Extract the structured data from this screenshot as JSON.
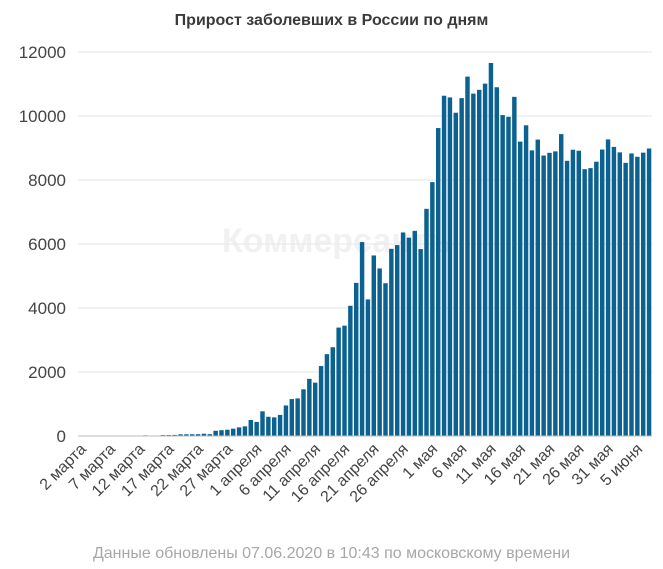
{
  "chart_data": {
    "type": "bar",
    "title": "Прирост заболевших в России по дням",
    "xlabel": "",
    "ylabel": "",
    "ylim": [
      0,
      12000
    ],
    "yticks": [
      0,
      2000,
      4000,
      6000,
      8000,
      10000,
      12000
    ],
    "grid": true,
    "color": "#0b6290",
    "dates": [
      "2 марта",
      "3 марта",
      "4 марта",
      "5 марта",
      "6 марта",
      "7 марта",
      "8 марта",
      "9 марта",
      "10 марта",
      "11 марта",
      "12 марта",
      "13 марта",
      "14 марта",
      "15 марта",
      "16 марта",
      "17 марта",
      "18 марта",
      "19 марта",
      "20 марта",
      "21 марта",
      "22 марта",
      "23 марта",
      "24 марта",
      "25 марта",
      "26 марта",
      "27 марта",
      "28 марта",
      "29 марта",
      "30 марта",
      "31 марта",
      "1 апреля",
      "2 апреля",
      "3 апреля",
      "4 апреля",
      "5 апреля",
      "6 апреля",
      "7 апреля",
      "8 апреля",
      "9 апреля",
      "10 апреля",
      "11 апреля",
      "12 апреля",
      "13 апреля",
      "14 апреля",
      "15 апреля",
      "16 апреля",
      "17 апреля",
      "18 апреля",
      "19 апреля",
      "20 апреля",
      "21 апреля",
      "22 апреля",
      "23 апреля",
      "24 апреля",
      "25 апреля",
      "26 апреля",
      "27 апреля",
      "28 апреля",
      "29 апреля",
      "30 апреля",
      "1 мая",
      "2 мая",
      "3 мая",
      "4 мая",
      "5 мая",
      "6 мая",
      "7 мая",
      "8 мая",
      "9 мая",
      "10 мая",
      "11 мая",
      "12 мая",
      "13 мая",
      "14 мая",
      "15 мая",
      "16 мая",
      "17 мая",
      "18 мая",
      "19 мая",
      "20 мая",
      "21 мая",
      "22 мая",
      "23 мая",
      "24 мая",
      "25 мая",
      "26 мая",
      "27 мая",
      "28 мая",
      "29 мая",
      "30 мая",
      "31 мая",
      "1 июня",
      "2 июня",
      "3 июня",
      "4 июня",
      "5 июня",
      "6 июня",
      "7 июня"
    ],
    "values": [
      1,
      0,
      0,
      1,
      0,
      10,
      4,
      2,
      3,
      8,
      6,
      21,
      15,
      4,
      29,
      30,
      33,
      52,
      53,
      54,
      57,
      71,
      57,
      163,
      182,
      196,
      228,
      270,
      302,
      500,
      440,
      771,
      601,
      582,
      658,
      954,
      1154,
      1175,
      1459,
      1786,
      1667,
      2186,
      2558,
      2774,
      3388,
      3448,
      4070,
      4785,
      6060,
      4268,
      5642,
      5236,
      4774,
      5849,
      5966,
      6361,
      6198,
      6411,
      5841,
      7099,
      7933,
      9623,
      10633,
      10581,
      10102,
      10559,
      11231,
      10699,
      10817,
      11012,
      11656,
      10899,
      10028,
      9974,
      10598,
      9200,
      9709,
      8926,
      9263,
      8764,
      8849,
      8894,
      9434,
      8599,
      8946,
      8915,
      8338,
      8371,
      8572,
      8952,
      9268,
      9035,
      8863,
      8536,
      8831,
      8726,
      8855,
      8984
    ],
    "categories": [
      "2 марта",
      "7 марта",
      "12 марта",
      "17 марта",
      "22 марта",
      "27 марта",
      "1 апреля",
      "6 апреля",
      "11 апреля",
      "16 апреля",
      "21 апреля",
      "26 апреля",
      "1 мая",
      "6 мая",
      "11 мая",
      "16 мая",
      "21 мая",
      "26 мая",
      "31 мая",
      "5 июня"
    ],
    "ytick_labels": [
      "0",
      "2000",
      "4000",
      "6000",
      "8000",
      "10000",
      "12000"
    ]
  },
  "watermark": "Коммерсантъ",
  "footer": {
    "note": "Данные обновлены 07.06.2020 в 10:43 по московскому времени"
  }
}
